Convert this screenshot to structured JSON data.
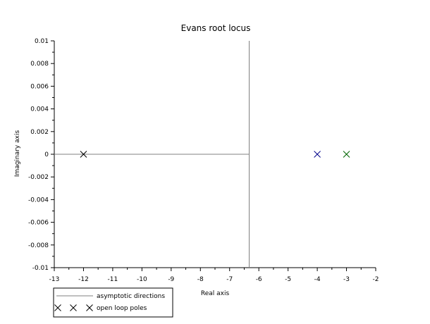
{
  "chart_data": {
    "type": "scatter",
    "title": "Evans root locus",
    "xlabel": "Real axis",
    "ylabel": "Imaginary axis",
    "xlim": [
      -13,
      -2
    ],
    "ylim": [
      -0.01,
      0.01
    ],
    "xticks": [
      -13,
      -12,
      -11,
      -10,
      -9,
      -8,
      -7,
      -6,
      -5,
      -4,
      -3,
      -2
    ],
    "yticks": [
      -0.01,
      -0.008,
      -0.006,
      -0.004,
      -0.002,
      0,
      0.002,
      0.004,
      0.006,
      0.008,
      0.01
    ],
    "xtick_labels": [
      "-13",
      "-12",
      "-11",
      "-10",
      "-9",
      "-8",
      "-7",
      "-6",
      "-5",
      "-4",
      "-3",
      "-2"
    ],
    "ytick_labels": [
      "-0.01",
      "-0.008",
      "-0.006",
      "-0.004",
      "-0.002",
      "0",
      "0.002",
      "0.004",
      "0.006",
      "0.008",
      "0.01"
    ],
    "grid": false,
    "asymptotes": {
      "name": "asymptotic directions",
      "color": "#808080",
      "centroid": [
        -6.33,
        0
      ],
      "horizontal_from_x": -6.33,
      "horizontal_to_x": -13
    },
    "poles": {
      "name": "open loop poles",
      "points": [
        {
          "x": -12,
          "y": 0,
          "color": "#000000"
        },
        {
          "x": -4,
          "y": 0,
          "color": "#00008b"
        },
        {
          "x": -3,
          "y": 0,
          "color": "#006400"
        }
      ]
    },
    "legend": {
      "position": "bottom-left",
      "entries": [
        {
          "label": "asymptotic directions",
          "marker": "line",
          "color": "#808080"
        },
        {
          "label": "open loop poles",
          "marker": "x",
          "colors": [
            "#000000",
            "#000000",
            "#000000"
          ]
        }
      ]
    }
  }
}
